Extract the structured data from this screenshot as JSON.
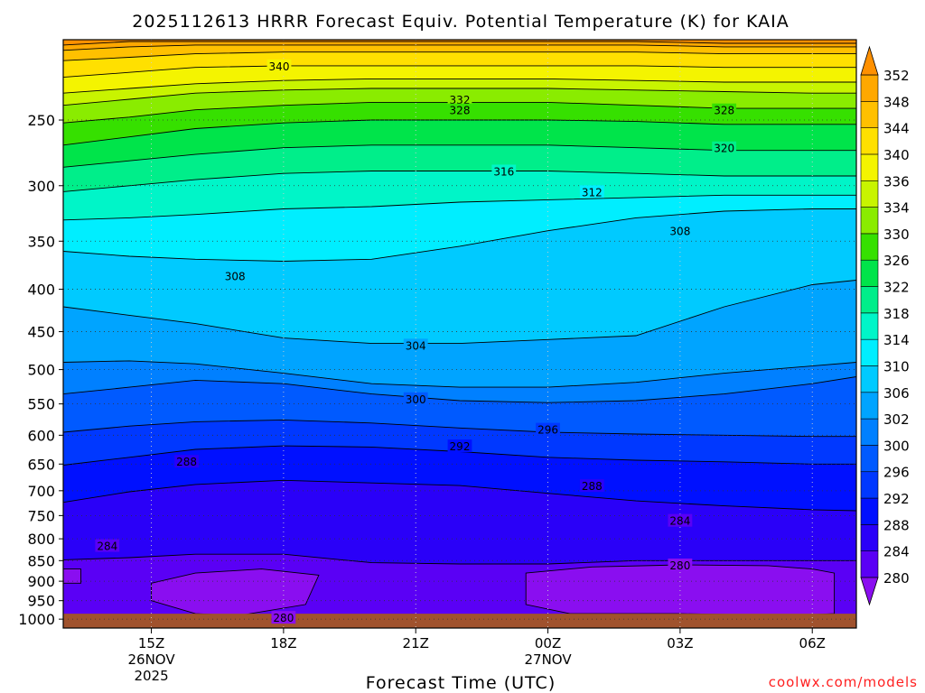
{
  "chart_data": {
    "type": "heatmap",
    "title": "2025112613 HRRR Forecast Equiv. Potential Temperature (K) for KAIA",
    "xlabel": "Forecast Time (UTC)",
    "ylabel": "",
    "credit": "coolwx.com/models",
    "x_range": [
      13,
      31.0
    ],
    "x_ticks": [
      {
        "x": 15,
        "label": "15Z",
        "sub1": "26NOV",
        "sub2": "2025"
      },
      {
        "x": 18,
        "label": "18Z",
        "sub1": "",
        "sub2": ""
      },
      {
        "x": 21,
        "label": "21Z",
        "sub1": "",
        "sub2": ""
      },
      {
        "x": 24,
        "label": "00Z",
        "sub1": "27NOV",
        "sub2": ""
      },
      {
        "x": 27,
        "label": "03Z",
        "sub1": "",
        "sub2": ""
      },
      {
        "x": 30,
        "label": "06Z",
        "sub1": "",
        "sub2": ""
      }
    ],
    "y_scale": "log-pressure",
    "y_range_hPa": [
      1025,
      200
    ],
    "y_ticks": [
      250,
      300,
      350,
      400,
      450,
      500,
      550,
      600,
      650,
      700,
      750,
      800,
      850,
      900,
      950,
      1000
    ],
    "grid": true,
    "surface_pressure_hPa": 985,
    "colorbar": {
      "levels": [
        280,
        284,
        288,
        292,
        296,
        300,
        302,
        306,
        310,
        314,
        318,
        322,
        326,
        330,
        334,
        336,
        340,
        344,
        348,
        352
      ],
      "colors": [
        "#8a0ef0",
        "#5a00f5",
        "#2a00f8",
        "#0010ff",
        "#0038ff",
        "#005aff",
        "#0080ff",
        "#00a4ff",
        "#00caff",
        "#00eeff",
        "#00f5c8",
        "#00ee8a",
        "#00e44a",
        "#36e000",
        "#8aec00",
        "#c8f400",
        "#f4f400",
        "#ffe000",
        "#ffc000",
        "#ffa800",
        "#ff9000"
      ],
      "labels": [
        "280",
        "284",
        "288",
        "292",
        "296",
        "300",
        "302",
        "306",
        "310",
        "314",
        "318",
        "322",
        "326",
        "330",
        "334",
        "336",
        "340",
        "344",
        "348",
        "352"
      ]
    },
    "contour_labels": [
      {
        "value": 340,
        "x": 17.9,
        "p": 215
      },
      {
        "value": 332,
        "x": 22.0,
        "p": 236
      },
      {
        "value": 328,
        "x": 22.0,
        "p": 243
      },
      {
        "value": 328,
        "x": 28.0,
        "p": 243
      },
      {
        "value": 320,
        "x": 28.0,
        "p": 270
      },
      {
        "value": 316,
        "x": 23.0,
        "p": 288
      },
      {
        "value": 312,
        "x": 25.0,
        "p": 305
      },
      {
        "value": 308,
        "x": 27.0,
        "p": 340
      },
      {
        "value": 308,
        "x": 16.9,
        "p": 385
      },
      {
        "value": 304,
        "x": 21.0,
        "p": 467
      },
      {
        "value": 300,
        "x": 21.0,
        "p": 542
      },
      {
        "value": 296,
        "x": 24.0,
        "p": 590
      },
      {
        "value": 292,
        "x": 22.0,
        "p": 618
      },
      {
        "value": 288,
        "x": 15.8,
        "p": 645
      },
      {
        "value": 288,
        "x": 25.0,
        "p": 690
      },
      {
        "value": 284,
        "x": 27.0,
        "p": 760
      },
      {
        "value": 284,
        "x": 14.0,
        "p": 815
      },
      {
        "value": 280,
        "x": 27.0,
        "p": 860
      },
      {
        "value": 280,
        "x": 18.0,
        "p": 995
      }
    ],
    "bands": [
      {
        "level": 280,
        "x": [
          13,
          14.5,
          16,
          18,
          20,
          22,
          24,
          26,
          28,
          30,
          31
        ],
        "p": [
          1000,
          1000,
          1000,
          1000,
          1000,
          1000,
          1000,
          1000,
          1000,
          1000,
          1000
        ]
      },
      {
        "level": 284,
        "x": [
          13,
          14.5,
          16,
          18,
          20,
          22,
          24,
          26,
          28,
          30,
          31
        ],
        "p": [
          848,
          843,
          835,
          835,
          855,
          858,
          858,
          850,
          850,
          850,
          850
        ]
      },
      {
        "level": 288,
        "x": [
          13,
          14.5,
          16,
          18,
          20,
          22,
          24,
          26,
          28,
          30,
          31
        ],
        "p": [
          723,
          702,
          688,
          680,
          685,
          690,
          705,
          720,
          730,
          738,
          740
        ]
      },
      {
        "level": 292,
        "x": [
          13,
          14.5,
          16,
          18,
          20,
          22,
          24,
          26,
          28,
          30,
          31
        ],
        "p": [
          652,
          638,
          624,
          618,
          620,
          628,
          638,
          643,
          646,
          650,
          650
        ]
      },
      {
        "level": 296,
        "x": [
          13,
          14.5,
          16,
          18,
          20,
          22,
          24,
          26,
          28,
          30,
          31
        ],
        "p": [
          595,
          585,
          578,
          575,
          580,
          588,
          595,
          598,
          600,
          602,
          602
        ]
      },
      {
        "level": 300,
        "x": [
          13,
          14.5,
          16,
          18,
          20,
          22,
          24,
          26,
          28,
          30,
          31
        ],
        "p": [
          535,
          525,
          515,
          520,
          535,
          545,
          548,
          545,
          535,
          520,
          510
        ]
      },
      {
        "level": 302,
        "x": [
          13,
          14.5,
          16,
          18,
          20,
          22,
          24,
          26,
          28,
          30,
          31
        ],
        "p": [
          490,
          488,
          492,
          505,
          520,
          525,
          525,
          518,
          505,
          495,
          490
        ]
      },
      {
        "level": 306,
        "x": [
          13,
          14.5,
          16,
          18,
          20,
          22,
          24,
          26,
          28,
          30,
          31
        ],
        "p": [
          420,
          430,
          440,
          458,
          465,
          465,
          460,
          455,
          420,
          395,
          390
        ]
      },
      {
        "level": 310,
        "x": [
          13,
          14.5,
          16,
          18,
          20,
          22,
          24,
          26,
          28,
          30,
          31
        ],
        "p": [
          360,
          365,
          368,
          370,
          368,
          355,
          340,
          328,
          322,
          320,
          320
        ]
      },
      {
        "level": 314,
        "x": [
          13,
          14.5,
          16,
          18,
          20,
          22,
          24,
          26,
          28,
          30,
          31
        ],
        "p": [
          330,
          328,
          325,
          320,
          318,
          314,
          312,
          310,
          308,
          308,
          308
        ]
      },
      {
        "level": 318,
        "x": [
          13,
          14.5,
          16,
          18,
          20,
          22,
          24,
          26,
          28,
          30,
          31
        ],
        "p": [
          305,
          300,
          295,
          290,
          288,
          288,
          288,
          290,
          292,
          292,
          292
        ]
      },
      {
        "level": 322,
        "x": [
          13,
          14.5,
          16,
          18,
          20,
          22,
          24,
          26,
          28,
          30,
          31
        ],
        "p": [
          285,
          280,
          275,
          270,
          268,
          268,
          268,
          270,
          272,
          272,
          272
        ]
      },
      {
        "level": 326,
        "x": [
          13,
          14.5,
          16,
          18,
          20,
          22,
          24,
          26,
          28,
          30,
          31
        ],
        "p": [
          268,
          262,
          256,
          252,
          250,
          250,
          250,
          251,
          253,
          253,
          253
        ]
      },
      {
        "level": 330,
        "x": [
          13,
          14.5,
          16,
          18,
          20,
          22,
          24,
          26,
          28,
          30,
          31
        ],
        "p": [
          252,
          248,
          243,
          240,
          238,
          238,
          238,
          240,
          242,
          242,
          242
        ]
      },
      {
        "level": 334,
        "x": [
          13,
          14.5,
          16,
          18,
          20,
          22,
          24,
          26,
          28,
          30,
          31
        ],
        "p": [
          240,
          236,
          232,
          230,
          229,
          229,
          229,
          230,
          231,
          232,
          232
        ]
      },
      {
        "level": 336,
        "x": [
          13,
          14.5,
          16,
          18,
          20,
          22,
          24,
          26,
          28,
          30,
          31
        ],
        "p": [
          232,
          229,
          226,
          224,
          223,
          223,
          223,
          224,
          225,
          225,
          225
        ]
      },
      {
        "level": 340,
        "x": [
          13,
          14.5,
          16,
          18,
          20,
          22,
          24,
          26,
          28,
          30,
          31
        ],
        "p": [
          222,
          219,
          216,
          215,
          215,
          215,
          215,
          215,
          216,
          216,
          216
        ]
      },
      {
        "level": 344,
        "x": [
          13,
          14.5,
          16,
          18,
          20,
          22,
          24,
          26,
          28,
          30,
          31
        ],
        "p": [
          212,
          210,
          208,
          207,
          207,
          207,
          207,
          207,
          208,
          208,
          208
        ]
      },
      {
        "level": 348,
        "x": [
          13,
          14.5,
          16,
          18,
          20,
          22,
          24,
          26,
          28,
          30,
          31
        ],
        "p": [
          206,
          204,
          203,
          203,
          203,
          203,
          203,
          203,
          204,
          204,
          204
        ]
      },
      {
        "level": 352,
        "x": [
          13,
          14.5,
          16,
          18,
          20,
          22,
          24,
          26,
          28,
          30,
          31
        ],
        "p": [
          203,
          201,
          201,
          201,
          201,
          201,
          201,
          201,
          202,
          202,
          202
        ]
      }
    ],
    "pockets_below_280": [
      {
        "x": [
          15.0,
          16.0,
          17.5,
          18.8,
          18.5,
          17.0,
          16.0,
          15.0
        ],
        "p": [
          905,
          880,
          870,
          885,
          960,
          990,
          985,
          950
        ]
      },
      {
        "x": [
          23.5,
          25.0,
          27.0,
          29.0,
          30.0,
          30.5,
          30.5,
          29.5,
          27.0,
          24.5,
          23.5
        ],
        "p": [
          880,
          865,
          860,
          862,
          870,
          880,
          985,
          990,
          985,
          985,
          960
        ]
      },
      {
        "x": [
          13.0,
          13.4,
          13.4,
          13.0
        ],
        "p": [
          870,
          870,
          905,
          905
        ]
      }
    ]
  }
}
